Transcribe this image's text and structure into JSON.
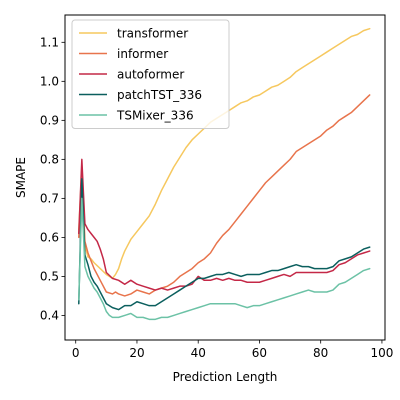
{
  "chart_data": {
    "type": "line",
    "xlabel": "Prediction Length",
    "ylabel": "SMAPE",
    "xlim": [
      -3.5,
      101
    ],
    "ylim": [
      0.337,
      1.17
    ],
    "xticks": [
      0,
      20,
      40,
      60,
      80,
      100
    ],
    "yticks": [
      0.4,
      0.5,
      0.6,
      0.7,
      0.8,
      0.9,
      1.0,
      1.1
    ],
    "grid": false,
    "legend": "top-left",
    "series": [
      {
        "name": "transformer",
        "color": "#F6C85F",
        "x": [
          1,
          2,
          3,
          4,
          5,
          6,
          8,
          10,
          12,
          13,
          14,
          15,
          16,
          17,
          18,
          19,
          20,
          22,
          24,
          26,
          28,
          30,
          32,
          34,
          36,
          38,
          40,
          42,
          44,
          46,
          48,
          50,
          52,
          54,
          56,
          58,
          60,
          62,
          64,
          66,
          68,
          70,
          72,
          74,
          76,
          78,
          80,
          82,
          84,
          86,
          88,
          90,
          92,
          94,
          96
        ],
        "y": [
          0.62,
          0.78,
          0.58,
          0.55,
          0.545,
          0.535,
          0.52,
          0.505,
          0.495,
          0.505,
          0.52,
          0.545,
          0.565,
          0.58,
          0.595,
          0.605,
          0.615,
          0.635,
          0.655,
          0.685,
          0.72,
          0.75,
          0.78,
          0.805,
          0.83,
          0.85,
          0.865,
          0.88,
          0.895,
          0.905,
          0.915,
          0.925,
          0.935,
          0.945,
          0.95,
          0.96,
          0.965,
          0.975,
          0.985,
          0.99,
          1.0,
          1.01,
          1.025,
          1.035,
          1.045,
          1.055,
          1.065,
          1.075,
          1.085,
          1.095,
          1.105,
          1.115,
          1.12,
          1.13,
          1.135
        ]
      },
      {
        "name": "informer",
        "color": "#E8744C",
        "x": [
          1,
          2,
          3,
          4,
          5,
          6,
          8,
          10,
          12,
          13,
          14,
          16,
          18,
          20,
          22,
          24,
          26,
          28,
          30,
          32,
          34,
          36,
          38,
          40,
          42,
          44,
          46,
          48,
          50,
          52,
          54,
          56,
          58,
          60,
          62,
          64,
          66,
          68,
          70,
          72,
          74,
          76,
          78,
          80,
          82,
          84,
          86,
          88,
          90,
          92,
          94,
          96
        ],
        "y": [
          0.6,
          0.76,
          0.59,
          0.56,
          0.54,
          0.52,
          0.49,
          0.46,
          0.455,
          0.46,
          0.455,
          0.45,
          0.455,
          0.465,
          0.46,
          0.455,
          0.465,
          0.47,
          0.475,
          0.485,
          0.5,
          0.51,
          0.52,
          0.535,
          0.545,
          0.56,
          0.585,
          0.605,
          0.62,
          0.64,
          0.66,
          0.68,
          0.7,
          0.72,
          0.74,
          0.755,
          0.77,
          0.785,
          0.8,
          0.82,
          0.83,
          0.84,
          0.85,
          0.86,
          0.875,
          0.885,
          0.9,
          0.91,
          0.92,
          0.935,
          0.95,
          0.965
        ]
      },
      {
        "name": "autoformer",
        "color": "#C42847",
        "x": [
          1,
          2,
          3,
          4,
          5,
          6,
          7,
          8,
          9,
          10,
          12,
          14,
          16,
          18,
          20,
          22,
          24,
          26,
          28,
          30,
          32,
          34,
          36,
          38,
          40,
          42,
          44,
          46,
          48,
          50,
          52,
          54,
          56,
          58,
          60,
          62,
          64,
          66,
          68,
          70,
          72,
          74,
          76,
          78,
          80,
          82,
          84,
          86,
          88,
          90,
          92,
          94,
          96
        ],
        "y": [
          0.61,
          0.8,
          0.635,
          0.62,
          0.61,
          0.6,
          0.59,
          0.57,
          0.545,
          0.51,
          0.495,
          0.49,
          0.48,
          0.49,
          0.48,
          0.475,
          0.47,
          0.465,
          0.47,
          0.465,
          0.47,
          0.475,
          0.475,
          0.48,
          0.5,
          0.49,
          0.49,
          0.495,
          0.49,
          0.495,
          0.49,
          0.49,
          0.485,
          0.485,
          0.485,
          0.49,
          0.495,
          0.5,
          0.505,
          0.5,
          0.51,
          0.51,
          0.51,
          0.51,
          0.51,
          0.51,
          0.515,
          0.53,
          0.535,
          0.545,
          0.555,
          0.56,
          0.565
        ]
      },
      {
        "name": "patchTST_336",
        "color": "#0B5F5E",
        "x": [
          1,
          2,
          3,
          4,
          5,
          6,
          7,
          8,
          9,
          10,
          12,
          14,
          16,
          18,
          20,
          22,
          24,
          26,
          28,
          30,
          32,
          34,
          36,
          38,
          40,
          42,
          44,
          46,
          48,
          50,
          52,
          54,
          56,
          58,
          60,
          62,
          64,
          66,
          68,
          70,
          72,
          74,
          76,
          78,
          80,
          82,
          84,
          86,
          88,
          90,
          92,
          94,
          96
        ],
        "y": [
          0.43,
          0.75,
          0.555,
          0.53,
          0.5,
          0.485,
          0.475,
          0.46,
          0.445,
          0.43,
          0.42,
          0.415,
          0.425,
          0.425,
          0.435,
          0.43,
          0.425,
          0.425,
          0.435,
          0.445,
          0.455,
          0.465,
          0.475,
          0.485,
          0.495,
          0.495,
          0.5,
          0.505,
          0.505,
          0.51,
          0.505,
          0.5,
          0.505,
          0.505,
          0.505,
          0.51,
          0.515,
          0.515,
          0.52,
          0.525,
          0.53,
          0.525,
          0.525,
          0.52,
          0.52,
          0.52,
          0.525,
          0.54,
          0.545,
          0.55,
          0.56,
          0.57,
          0.575
        ]
      },
      {
        "name": "TSMixer_336",
        "color": "#6CC2A6",
        "x": [
          1,
          2,
          3,
          4,
          5,
          6,
          7,
          8,
          9,
          10,
          11,
          12,
          14,
          16,
          18,
          20,
          22,
          24,
          26,
          28,
          30,
          32,
          34,
          36,
          38,
          40,
          42,
          44,
          46,
          48,
          50,
          52,
          54,
          56,
          58,
          60,
          62,
          64,
          66,
          68,
          70,
          72,
          74,
          76,
          78,
          80,
          82,
          84,
          86,
          88,
          90,
          92,
          94,
          96
        ],
        "y": [
          0.44,
          0.7,
          0.525,
          0.5,
          0.485,
          0.47,
          0.46,
          0.445,
          0.43,
          0.41,
          0.4,
          0.395,
          0.395,
          0.4,
          0.405,
          0.395,
          0.395,
          0.39,
          0.39,
          0.395,
          0.395,
          0.4,
          0.405,
          0.41,
          0.415,
          0.42,
          0.425,
          0.43,
          0.43,
          0.43,
          0.43,
          0.43,
          0.425,
          0.42,
          0.425,
          0.425,
          0.43,
          0.435,
          0.44,
          0.445,
          0.45,
          0.455,
          0.46,
          0.465,
          0.46,
          0.46,
          0.46,
          0.465,
          0.48,
          0.485,
          0.495,
          0.505,
          0.515,
          0.52
        ]
      }
    ]
  }
}
